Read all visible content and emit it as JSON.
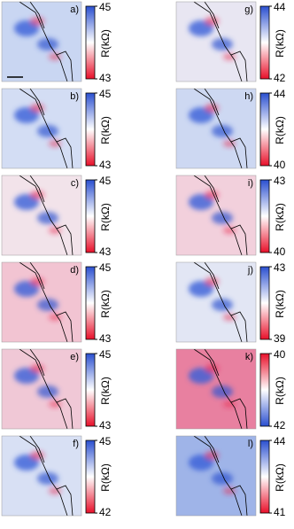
{
  "panels": [
    {
      "label": "a)",
      "top": "45",
      "bottom": "43",
      "axis_label": "R(kΩ)"
    },
    {
      "label": "b)",
      "top": "45",
      "bottom": "43",
      "axis_label": "R(kΩ)"
    },
    {
      "label": "c)",
      "top": "45",
      "bottom": "43",
      "axis_label": "R(kΩ)"
    },
    {
      "label": "d)",
      "top": "45",
      "bottom": "43",
      "axis_label": "R(kΩ)"
    },
    {
      "label": "e)",
      "top": "45",
      "bottom": "43",
      "axis_label": "R(kΩ)"
    },
    {
      "label": "f)",
      "top": "45",
      "bottom": "42",
      "axis_label": "R(kΩ)"
    },
    {
      "label": "g)",
      "top": "44",
      "bottom": "42",
      "axis_label": "R(kΩ)"
    },
    {
      "label": "h)",
      "top": "44",
      "bottom": "40",
      "axis_label": "R(kΩ)"
    },
    {
      "label": "i)",
      "top": "43",
      "bottom": "40",
      "axis_label": "R(kΩ)"
    },
    {
      "label": "j)",
      "top": "43",
      "bottom": "39",
      "axis_label": "R(kΩ)"
    },
    {
      "label": "k)",
      "top": "40",
      "bottom": "42",
      "axis_label": "R(kΩ)"
    },
    {
      "label": "l)",
      "top": "44",
      "bottom": "41",
      "axis_label": "R(kΩ)"
    }
  ]
}
